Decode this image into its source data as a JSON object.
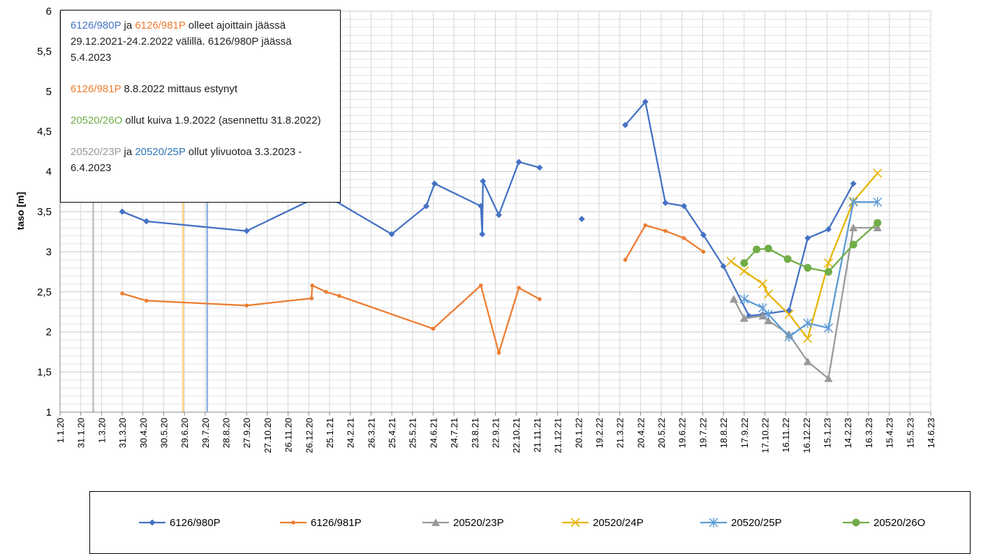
{
  "chart_data": {
    "type": "line",
    "title": "",
    "ylabel": "taso [m]",
    "xlabel": "",
    "ylim": [
      1,
      6
    ],
    "yticks": [
      "1",
      "1,5",
      "2",
      "2,5",
      "3",
      "3,5",
      "4",
      "4,5",
      "5",
      "5,5",
      "6"
    ],
    "xlim": [
      "2020-01-01",
      "2023-06-14"
    ],
    "xticks": [
      "1.1.20",
      "31.1.20",
      "1.3.20",
      "31.3.20",
      "30.4.20",
      "30.5.20",
      "29.6.20",
      "29.7.20",
      "28.8.20",
      "27.9.20",
      "27.10.20",
      "26.11.20",
      "26.12.20",
      "25.1.21",
      "24.2.21",
      "26.3.21",
      "25.4.21",
      "25.5.21",
      "24.6.21",
      "24.7.21",
      "23.8.21",
      "22.9.21",
      "22.10.21",
      "21.11.21",
      "21.12.21",
      "20.1.22",
      "19.2.22",
      "21.3.22",
      "20.4.22",
      "20.5.22",
      "19.6.22",
      "19.7.22",
      "18.8.22",
      "17.9.22",
      "17.10.22",
      "16.11.22",
      "16.12.22",
      "15.1.23",
      "14.2.23",
      "16.3.23",
      "15.4.23",
      "15.5.23",
      "14.6.23"
    ],
    "grid": true,
    "legend_position": "bottom",
    "vlines": [
      {
        "date": "2020-02-18",
        "color": "#bfbfbf"
      },
      {
        "date": "2020-06-27",
        "color": "#ffd27f"
      },
      {
        "date": "2020-08-01",
        "color": "#8fb0e0"
      }
    ],
    "series": [
      {
        "name": "6126/980P",
        "color": "#4472c4",
        "marker": "diamond",
        "points": [
          [
            "2020-03-31",
            3.5
          ],
          [
            "2020-05-05",
            3.38
          ],
          [
            "2020-09-27",
            3.26
          ],
          [
            "2020-12-30",
            3.65
          ],
          [
            "2021-01-30",
            3.65
          ],
          [
            "2021-04-25",
            3.22
          ],
          [
            "2021-06-14",
            3.57
          ],
          [
            "2021-06-26",
            3.85
          ],
          [
            "2021-09-01",
            3.57
          ],
          [
            "2021-09-03",
            3.22
          ],
          [
            "2021-09-04",
            3.88
          ],
          [
            "2021-09-27",
            3.46
          ],
          [
            "2021-10-26",
            4.12
          ],
          [
            "2021-11-25",
            4.05
          ],
          null,
          [
            "2022-01-25",
            3.41
          ],
          null,
          [
            "2022-03-29",
            4.58
          ],
          [
            "2022-04-27",
            4.87
          ],
          [
            "2022-05-26",
            3.61
          ],
          [
            "2022-06-22",
            3.57
          ],
          [
            "2022-07-20",
            3.21
          ],
          [
            "2022-08-18",
            2.82
          ],
          [
            "2022-09-24",
            2.2
          ],
          [
            "2022-10-14",
            2.22
          ],
          [
            "2022-11-21",
            2.27
          ],
          [
            "2022-12-18",
            3.17
          ],
          [
            "2023-01-17",
            3.28
          ],
          [
            "2023-02-22",
            3.85
          ]
        ]
      },
      {
        "name": "6126/981P",
        "color": "#ed7d31",
        "marker": "dot",
        "points": [
          [
            "2020-03-31",
            2.48
          ],
          [
            "2020-05-05",
            2.39
          ],
          [
            "2020-09-27",
            2.33
          ],
          [
            "2020-12-30",
            2.42
          ],
          [
            "2020-12-31",
            2.58
          ],
          [
            "2021-01-20",
            2.5
          ],
          [
            "2021-02-08",
            2.45
          ],
          [
            "2021-06-24",
            2.04
          ],
          [
            "2021-09-01",
            2.58
          ],
          [
            "2021-09-27",
            1.74
          ],
          [
            "2021-10-26",
            2.55
          ],
          [
            "2021-11-25",
            2.41
          ],
          null,
          [
            "2022-03-29",
            2.9
          ],
          [
            "2022-04-27",
            3.33
          ],
          [
            "2022-05-26",
            3.26
          ],
          [
            "2022-06-22",
            3.17
          ],
          [
            "2022-07-20",
            3.0
          ]
        ]
      },
      {
        "name": "20520/23P",
        "color": "#999999",
        "marker": "triangle",
        "points": [
          [
            "2022-09-02",
            2.41
          ],
          [
            "2022-09-17",
            2.17
          ],
          [
            "2022-10-14",
            2.2
          ],
          [
            "2022-10-22",
            2.14
          ],
          [
            "2022-11-21",
            1.97
          ],
          [
            "2022-12-18",
            1.63
          ],
          [
            "2023-01-17",
            1.42
          ],
          [
            "2023-02-22",
            3.3
          ],
          [
            "2023-03-29",
            3.3
          ]
        ]
      },
      {
        "name": "20520/24P",
        "color": "#e6b400",
        "marker": "x",
        "points": [
          [
            "2022-08-29",
            2.88
          ],
          [
            "2022-09-17",
            2.76
          ],
          [
            "2022-10-14",
            2.6
          ],
          [
            "2022-10-22",
            2.47
          ],
          [
            "2022-11-21",
            2.22
          ],
          [
            "2022-12-18",
            1.92
          ],
          [
            "2023-01-17",
            2.86
          ],
          [
            "2023-02-22",
            3.63
          ],
          [
            "2023-03-29",
            3.98
          ]
        ]
      },
      {
        "name": "20520/25P",
        "color": "#5b9bd5",
        "marker": "asterisk",
        "points": [
          [
            "2022-09-17",
            2.41
          ],
          [
            "2022-10-14",
            2.3
          ],
          [
            "2022-10-22",
            2.22
          ],
          [
            "2022-11-21",
            1.94
          ],
          [
            "2022-12-18",
            2.11
          ],
          [
            "2023-01-17",
            2.05
          ],
          [
            "2023-02-22",
            3.62
          ],
          [
            "2023-03-29",
            3.62
          ]
        ]
      },
      {
        "name": "20520/26O",
        "color": "#70ad47",
        "marker": "circle",
        "points": [
          [
            "2022-09-17",
            2.86
          ],
          [
            "2022-10-05",
            3.03
          ],
          [
            "2022-10-22",
            3.04
          ],
          [
            "2022-11-19",
            2.91
          ],
          [
            "2022-12-18",
            2.8
          ],
          [
            "2023-01-17",
            2.75
          ],
          [
            "2023-02-22",
            3.09
          ],
          [
            "2023-03-29",
            3.36
          ]
        ]
      }
    ]
  },
  "annotation": {
    "p1": {
      "s1": "6126/980P",
      "t1": " ja ",
      "s2": "6126/981P",
      "t2": " olleet ajoittain jäässä 29.12.2021-24.2.2022 välillä. 6126/980P jäässä 5.4.2023"
    },
    "p2": {
      "s1": "6126/981P",
      "t1": " 8.8.2022 mittaus estynyt"
    },
    "p3": {
      "s1": "20520/26O",
      "t1": " ollut kuiva 1.9.2022 (asennettu 31.8.2022)"
    },
    "p4": {
      "s1": "20520/23P",
      "t1": " ja ",
      "s2": "20520/25P",
      "t2": " ollut ylivuotoa 3.3.2023 - 6.4.2023"
    }
  },
  "colors": {
    "c980": "#4472c4",
    "c981": "#ed7d31",
    "c23": "#999999",
    "c24": "#e6b400",
    "c25": "#2e75b6",
    "c26": "#70ad47"
  }
}
